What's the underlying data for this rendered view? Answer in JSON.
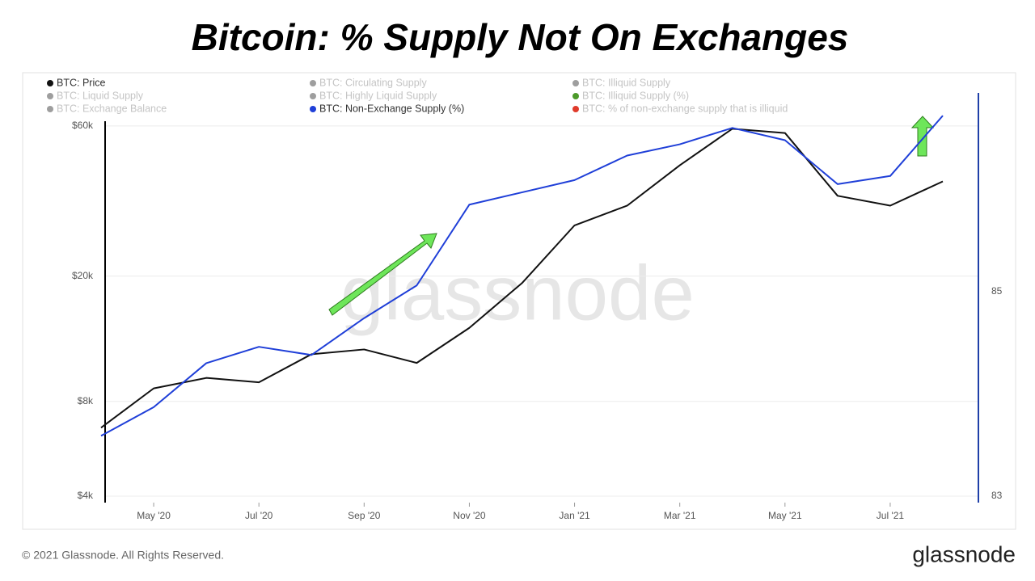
{
  "chart_data": {
    "type": "line",
    "title": "Bitcoin: % Supply Not On Exchanges",
    "watermark": "glassnode",
    "x": [
      "2020-04",
      "2020-05",
      "2020-06",
      "2020-07",
      "2020-08",
      "2020-09",
      "2020-10",
      "2020-11",
      "2020-12",
      "2021-01",
      "2021-02",
      "2021-03",
      "2021-04",
      "2021-05",
      "2021-06",
      "2021-07",
      "2021-08"
    ],
    "xlim": [
      "2020-04",
      "2021-08"
    ],
    "xticks": [
      {
        "value": "2020-05",
        "label": "May '20"
      },
      {
        "value": "2020-07",
        "label": "Jul '20"
      },
      {
        "value": "2020-09",
        "label": "Sep '20"
      },
      {
        "value": "2020-11",
        "label": "Nov '20"
      },
      {
        "value": "2021-01",
        "label": "Jan '21"
      },
      {
        "value": "2021-03",
        "label": "Mar '21"
      },
      {
        "value": "2021-05",
        "label": "May '21"
      },
      {
        "value": "2021-07",
        "label": "Jul '21"
      }
    ],
    "ylog": true,
    "ylim": [
      4000,
      86000
    ],
    "yticks": [
      {
        "value": 4000,
        "label": "$4k"
      },
      {
        "value": 8000,
        "label": "$8k"
      },
      {
        "value": 20000,
        "label": "$20k"
      },
      {
        "value": 60000,
        "label": "$60k"
      }
    ],
    "y2lim": [
      83,
      87.1
    ],
    "y2ticks": [
      83,
      85
    ],
    "grid": true,
    "series": [
      {
        "name": "BTC: Price",
        "color": "#111111",
        "values": [
          6600,
          8800,
          9500,
          9200,
          11300,
          11700,
          10600,
          13700,
          19000,
          29000,
          33500,
          45000,
          58800,
          57000,
          36000,
          33500,
          40000
        ]
      },
      {
        "name": "BTC: Non-Exchange Supply (%)",
        "color": "#1f3fd8",
        "axis": "y2",
        "values": [
          83.59,
          83.87,
          84.3,
          84.46,
          84.38,
          84.74,
          85.06,
          85.85,
          85.97,
          86.09,
          86.33,
          86.44,
          86.6,
          86.48,
          86.05,
          86.13,
          86.72
        ]
      }
    ],
    "other_legend_items": [
      {
        "name": "BTC: Circulating Supply",
        "color": "#9e9e9e"
      },
      {
        "name": "BTC: Illiquid Supply",
        "color": "#9e9e9e"
      },
      {
        "name": "BTC: Liquid Supply",
        "color": "#9e9e9e"
      },
      {
        "name": "BTC: Highly Liquid Supply",
        "color": "#9e9e9e"
      },
      {
        "name": "BTC: Illiquid Supply (%)",
        "color": "#4c9a2a"
      },
      {
        "name": "BTC: Exchange Balance",
        "color": "#9e9e9e"
      },
      {
        "name": "BTC: % of non-exchange supply that is illiquid",
        "color": "#e03b2b"
      }
    ]
  },
  "footer": {
    "copyright": "© 2021 Glassnode. All Rights Reserved.",
    "logo": "glassnode"
  }
}
